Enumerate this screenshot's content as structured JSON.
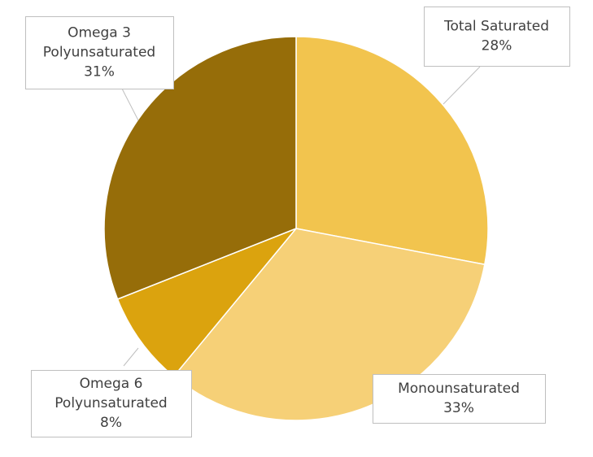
{
  "chart_data": {
    "type": "pie",
    "title": "",
    "slices": [
      {
        "label": "Total Saturated",
        "value": 28,
        "display": "28%",
        "color": "#F2C44E"
      },
      {
        "label": "Monounsaturated",
        "value": 33,
        "display": "33%",
        "color": "#F6D077"
      },
      {
        "label": "Omega 6 Polyunsaturated",
        "value": 8,
        "display": "8%",
        "color": "#DBA30E"
      },
      {
        "label": "Omega 3 Polyunsaturated",
        "value": 31,
        "display": "31%",
        "color": "#966D09"
      }
    ],
    "callouts": [
      {
        "lines": [
          "Total Saturated",
          "28%"
        ]
      },
      {
        "lines": [
          "Monounsaturated",
          "33%"
        ]
      },
      {
        "lines": [
          "Omega 6",
          "Polyunsaturated",
          "8%"
        ]
      },
      {
        "lines": [
          "Omega 3",
          "Polyunsaturated",
          "31%"
        ]
      }
    ]
  }
}
